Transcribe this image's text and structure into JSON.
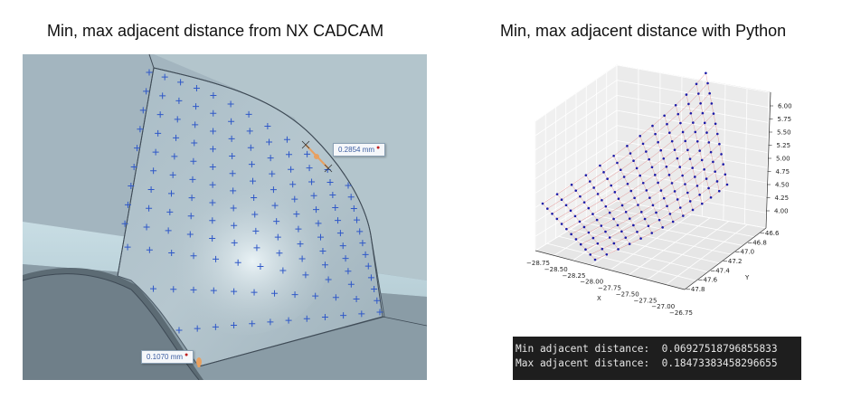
{
  "titles": {
    "left": "Min, max adjacent distance from NX CADCAM",
    "right": "Min, max  adjacent distance with Python"
  },
  "cad": {
    "max_measure": "0.2854 mm",
    "min_measure": "0.1070 mm",
    "marker_color": "#2f58c8",
    "highlight_color": "#e8a060"
  },
  "plot": {
    "z_ticks": [
      "6.00",
      "5.75",
      "5.50",
      "5.25",
      "5.00",
      "4.75",
      "4.50",
      "4.25",
      "4.00"
    ],
    "x_ticks": [
      "−28.75",
      "−28.50",
      "−28.25",
      "−28.00",
      "−27.75",
      "−27.50",
      "−27.25",
      "−27.00",
      "−26.75"
    ],
    "y_ticks": [
      "−46.6",
      "−46.8",
      "−47.0",
      "−47.2",
      "−47.4",
      "−47.6",
      "−47.8"
    ],
    "x_label": "X",
    "y_label": "Y",
    "point_color": "#1a1aa8",
    "line_color": "#e07070"
  },
  "console": {
    "min_label": "Min adjacent distance:",
    "min_value": "0.06927518796855833",
    "max_label": "Max adjacent distance:",
    "max_value": "0.18473383458296655"
  }
}
